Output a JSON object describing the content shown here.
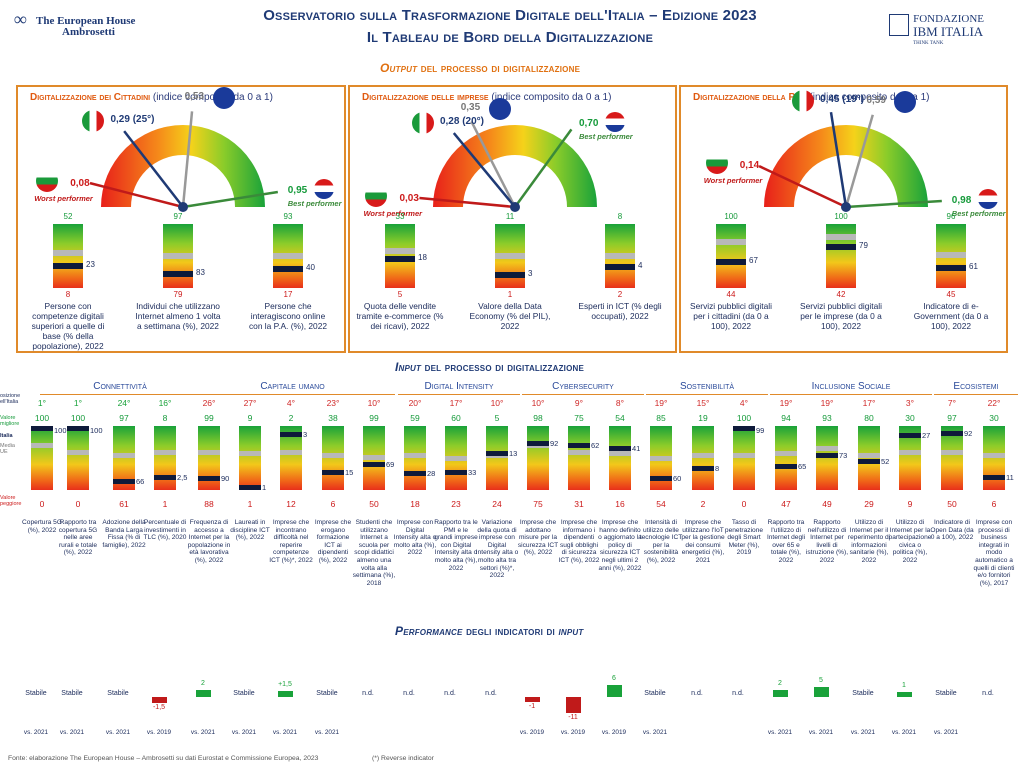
{
  "header": {
    "title1": "Osservatorio sulla Trasformazione Digitale dell'Italia – Edizione 2023",
    "title2": "Il Tableau de Bord della Digitalizzazione",
    "logo_left_1": "The European House",
    "logo_left_2": "Ambrosetti",
    "logo_right_1": "FONDAZIONE",
    "logo_right_2": "IBM ITALIA",
    "logo_right_3": "THINK TANK"
  },
  "output_title_a": "Output",
  "output_title_b": " del processo di digitalizzazione",
  "panels": [
    {
      "title": "Digitalizzazione dei Cittadini",
      "subtitle": "(indice composito da 0 a 1)",
      "italy": "0,29 (25°)",
      "eu": "0,53",
      "worst": "0,08",
      "best": "0,95",
      "worst_label": "Worst performer",
      "best_label": "Best performer",
      "gauge": {
        "italy": 0.29,
        "eu": 0.53,
        "worst": 0.08,
        "best": 0.95
      },
      "bars": [
        {
          "top": "52",
          "bottom": "8",
          "value": "23",
          "desc": "Persone con competenze digitali superiori a quelle di base (% della popolazione), 2022",
          "frac": 0.34,
          "eu_frac": 0.55
        },
        {
          "top": "97",
          "bottom": "79",
          "value": "83",
          "desc": "Individui che utilizzano Internet almeno 1 volta a settimana (%), 2022",
          "frac": 0.22,
          "eu_frac": 0.5
        },
        {
          "top": "93",
          "bottom": "17",
          "value": "40",
          "desc": "Persone che interagiscono online con la P.A. (%), 2022",
          "frac": 0.3,
          "eu_frac": 0.5
        }
      ]
    },
    {
      "title": "Digitalizzazione delle imprese",
      "subtitle": "(indice composito da 0 a 1)",
      "italy": "0,28 (20°)",
      "eu": "0,35",
      "worst": "0,03",
      "best": "0,70",
      "worst_label": "Worst performer",
      "best_label": "Best performer",
      "gauge": {
        "italy": 0.28,
        "eu": 0.35,
        "worst": 0.03,
        "best": 0.7
      },
      "bars": [
        {
          "top": "33",
          "bottom": "5",
          "value": "18",
          "desc": "Quota delle vendite tramite e-commerce (% dei ricavi), 2022",
          "frac": 0.46,
          "eu_frac": 0.58
        },
        {
          "top": "11",
          "bottom": "1",
          "value": "3",
          "desc": "Valore della Data Economy (% del PIL), 2022",
          "frac": 0.2,
          "eu_frac": 0.5
        },
        {
          "top": "8",
          "bottom": "2",
          "value": "4",
          "desc": "Esperti in ICT (% degli occupati), 2022",
          "frac": 0.33,
          "eu_frac": 0.5
        }
      ]
    },
    {
      "title": "Digitalizzazione della P.A.",
      "subtitle": "(indice composito da 0 a 1)",
      "italy": "0,45 (19°)",
      "eu": "0,59",
      "worst": "0,14",
      "best": "0,98",
      "worst_label": "Worst performer",
      "best_label": "Best performer",
      "gauge": {
        "italy": 0.45,
        "eu": 0.59,
        "worst": 0.14,
        "best": 0.98
      },
      "bars": [
        {
          "top": "100",
          "bottom": "44",
          "value": "67",
          "desc": "Servizi pubblici digitali per i cittadini (da 0 a 100), 2022",
          "frac": 0.41,
          "eu_frac": 0.72
        },
        {
          "top": "100",
          "bottom": "42",
          "value": "79",
          "desc": "Servizi pubblici digitali per le imprese (da 0 a 100), 2022",
          "frac": 0.64,
          "eu_frac": 0.8
        },
        {
          "top": "96",
          "bottom": "45",
          "value": "61",
          "desc": "Indicatore di e-Government (da 0 a 100), 2022",
          "frac": 0.31,
          "eu_frac": 0.52
        }
      ]
    }
  ],
  "input_title_a": "Input",
  "input_title_b": " del processo di digitalizzazione",
  "legend": {
    "posizione": "osizione ell'Italia",
    "migliore": "Valore migliore",
    "italia": "Italia",
    "media": "Media UE",
    "peggiore": "Valore peggiore"
  },
  "categories": [
    {
      "name": "Connettività",
      "x": 40,
      "w": 160
    },
    {
      "name": "Capitale umano",
      "x": 190,
      "w": 205
    },
    {
      "name": "Digital Intensity",
      "x": 398,
      "w": 122
    },
    {
      "name": "Cybersecurity",
      "x": 522,
      "w": 122
    },
    {
      "name": "Sostenibilità",
      "x": 646,
      "w": 122
    },
    {
      "name": "Inclusione Sociale",
      "x": 770,
      "w": 162
    },
    {
      "name": "Ecosistemi",
      "x": 934,
      "w": 84
    }
  ],
  "inputs": [
    {
      "rank": "1°",
      "top": "100",
      "bottom": "0",
      "value": "100",
      "desc": "Copertura 5G (%), 2022",
      "frac": 1.0,
      "eu_frac": 0.7,
      "perf": "Stabile",
      "vs": "vs. 2021",
      "delta": 0
    },
    {
      "rank": "1°",
      "top": "100",
      "bottom": "0",
      "value": "100",
      "desc": "Rapporto tra copertura 5G nelle aree rurali e totale (%), 2022",
      "frac": 1.0,
      "eu_frac": 0.6,
      "perf": "Stabile",
      "vs": "vs. 2021",
      "delta": 0
    },
    {
      "rank": "24°",
      "top": "97",
      "bottom": "61",
      "value": "66",
      "desc": "Adozione della Banda Larga Fissa (% di famiglie), 2022",
      "frac": 0.14,
      "eu_frac": 0.55,
      "perf": "Stabile",
      "vs": "vs. 2021",
      "delta": 0
    },
    {
      "rank": "16°",
      "top": "8",
      "bottom": "1",
      "value": "2,5",
      "desc": "Percentuale di investimenti in TLC (%), 2020",
      "frac": 0.21,
      "eu_frac": 0.6,
      "perf": "-1,5",
      "vs": "vs. 2019",
      "delta": -1.5
    },
    {
      "rank": "26°",
      "top": "99",
      "bottom": "88",
      "value": "90",
      "desc": "Frequenza di accesso a Internet per la popolazione in età lavorativa (%), 2022",
      "frac": 0.18,
      "eu_frac": 0.6,
      "perf": "2",
      "vs": "vs. 2021",
      "delta": 2
    },
    {
      "rank": "27°",
      "top": "9",
      "bottom": "1",
      "value": "1",
      "desc": "Laureati in discipline ICT (%), 2022",
      "frac": 0.05,
      "eu_frac": 0.58,
      "perf": "Stabile",
      "vs": "vs. 2021",
      "delta": 0
    },
    {
      "rank": "4°",
      "top": "2",
      "bottom": "12",
      "value": "3",
      "desc": "Imprese che incontrano difficoltà nel reperire competenze ICT (%)*, 2022",
      "frac": 0.88,
      "eu_frac": 0.6,
      "perf": "+1,5",
      "vs": "vs. 2021",
      "delta": 1.5
    },
    {
      "rank": "23°",
      "top": "38",
      "bottom": "6",
      "value": "15",
      "desc": "Imprese che erogano formazione ICT ai dipendenti (%), 2022",
      "frac": 0.28,
      "eu_frac": 0.55,
      "perf": "Stabile",
      "vs": "vs. 2021",
      "delta": 0
    },
    {
      "rank": "10°",
      "top": "99",
      "bottom": "50",
      "value": "69",
      "desc": "Studenti che utilizzano Internet a scuola per scopi didattici almeno una volta alla settimana (%), 2018",
      "frac": 0.4,
      "eu_frac": 0.52,
      "perf": "n.d.",
      "vs": "",
      "delta": 0
    },
    {
      "rank": "20°",
      "top": "59",
      "bottom": "18",
      "value": "28",
      "desc": "Imprese con Digital Intensity alta o molto alta (%), 2022",
      "frac": 0.26,
      "eu_frac": 0.55,
      "perf": "n.d.",
      "vs": "",
      "delta": 0
    },
    {
      "rank": "17°",
      "top": "60",
      "bottom": "23",
      "value": "33",
      "desc": "Rapporto tra le PMI e le grandi imprese con Digital Intensity alta o molto alta (%), 2022",
      "frac": 0.28,
      "eu_frac": 0.5,
      "perf": "n.d.",
      "vs": "",
      "delta": 0
    },
    {
      "rank": "10°",
      "top": "5",
      "bottom": "24",
      "value": "13",
      "desc": "Variazione della quota di imprese con Digital Intensity alta o molto alta tra settori (%)*, 2022",
      "frac": 0.58,
      "eu_frac": 0.55,
      "perf": "n.d.",
      "vs": "",
      "delta": 0
    },
    {
      "rank": "10°",
      "top": "98",
      "bottom": "75",
      "value": "92",
      "desc": "Imprese che adottano misure per la sicurezza ICT (%), 2022",
      "frac": 0.74,
      "eu_frac": 0.7,
      "perf": "-1",
      "vs": "vs. 2019",
      "delta": -1
    },
    {
      "rank": "9°",
      "top": "75",
      "bottom": "31",
      "value": "62",
      "desc": "Imprese che informano i dipendenti sugli obblighi di sicurezza ICT (%), 2022",
      "frac": 0.7,
      "eu_frac": 0.6,
      "perf": "-11",
      "vs": "vs. 2019",
      "delta": -11
    },
    {
      "rank": "8°",
      "top": "54",
      "bottom": "16",
      "value": "41",
      "desc": "Imprese che hanno definito o aggiornato la policy di sicurezza ICT negli ultimi 2 anni (%), 2022",
      "frac": 0.66,
      "eu_frac": 0.58,
      "perf": "6",
      "vs": "vs. 2019",
      "delta": 6
    },
    {
      "rank": "19°",
      "top": "85",
      "bottom": "54",
      "value": "60",
      "desc": "Intensità di utilizzo delle tecnologie ICT per la sostenibilità (%), 2022",
      "frac": 0.19,
      "eu_frac": 0.5,
      "perf": "Stabile",
      "vs": "vs. 2021",
      "delta": 0
    },
    {
      "rank": "15°",
      "top": "19",
      "bottom": "2",
      "value": "8",
      "desc": "Imprese che utilizzano l'IoT per la gestione dei consumi energetici (%), 2021",
      "frac": 0.35,
      "eu_frac": 0.55,
      "perf": "n.d.",
      "vs": "",
      "delta": 0
    },
    {
      "rank": "4°",
      "top": "100",
      "bottom": "0",
      "value": "99",
      "desc": "Tasso di penetrazione degli Smart Meter (%), 2019",
      "frac": 0.99,
      "eu_frac": 0.55,
      "perf": "n.d.",
      "vs": "",
      "delta": 0
    },
    {
      "rank": "19°",
      "top": "94",
      "bottom": "47",
      "value": "65",
      "desc": "Rapporto tra l'utilizzo di Internet degli over 65 e totale (%), 2022",
      "frac": 0.38,
      "eu_frac": 0.58,
      "perf": "2",
      "vs": "vs. 2021",
      "delta": 2
    },
    {
      "rank": "19°",
      "top": "93",
      "bottom": "49",
      "value": "73",
      "desc": "Rapporto nell'utilizzo di Internet per livelli di istruzione (%), 2022",
      "frac": 0.55,
      "eu_frac": 0.65,
      "perf": "5",
      "vs": "vs. 2021",
      "delta": 5
    },
    {
      "rank": "17°",
      "top": "80",
      "bottom": "29",
      "value": "52",
      "desc": "Utilizzo di Internet per il reperimento di informazioni sanitarie (%), 2022",
      "frac": 0.45,
      "eu_frac": 0.55,
      "perf": "Stabile",
      "vs": "vs. 2021",
      "delta": 0
    },
    {
      "rank": "3°",
      "top": "30",
      "bottom": "9",
      "value": "27",
      "desc": "Utilizzo di Internet per la partecipazione civica o politica (%), 2022",
      "frac": 0.86,
      "eu_frac": 0.6,
      "perf": "1",
      "vs": "vs. 2021",
      "delta": 1
    },
    {
      "rank": "7°",
      "top": "97",
      "bottom": "50",
      "value": "92",
      "desc": "Indicatore di Open Data (da 0 a 100), 2022",
      "frac": 0.89,
      "eu_frac": 0.6,
      "perf": "Stabile",
      "vs": "vs. 2021",
      "delta": 0
    },
    {
      "rank": "22°",
      "top": "30",
      "bottom": "6",
      "value": "11",
      "desc": "Imprese con processi di business integrati in modo automatico a quelli di clienti e/o fornitori (%), 2017",
      "frac": 0.21,
      "eu_frac": 0.55,
      "perf": "n.d.",
      "vs": "",
      "delta": 0
    }
  ],
  "performance_title_a": "Performance",
  "performance_title_b": " degli indicatori di ",
  "performance_title_c": "input",
  "footer_source": "Fonte: elaborazione The European House – Ambrosetti su dati Eurostat e Commissione Europea, 2023",
  "footer_note": "(*) Reverse indicator",
  "colors": {
    "navy": "#1f3a75",
    "orange": "#e08a2a",
    "green": "#19a23a",
    "red": "#c01a1a"
  }
}
